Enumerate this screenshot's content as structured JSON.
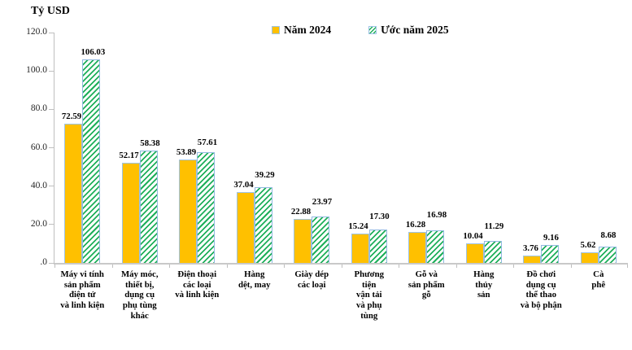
{
  "chart": {
    "y_axis_title": "Tỷ USD",
    "legend": [
      {
        "label": "Năm 2024",
        "swatch": "solid-orange-square"
      },
      {
        "label": "Ước năm 2025",
        "swatch": "green-hatched-square"
      }
    ],
    "colors": {
      "series_2024_fill": "#FFC000",
      "series_2025_hatch": "#1EAF5A",
      "bar_border": "#9DC3E6",
      "axis_line": "#BFBFBF",
      "text": "#000000"
    }
  },
  "chart_data": {
    "type": "bar",
    "title": "",
    "ylabel": "Tỷ USD",
    "xlabel": "",
    "ylim": [
      0,
      120
    ],
    "ytick_labels": [
      "120.0",
      "100.0",
      "80.0",
      "60.0",
      "40.0",
      "20.0",
      ".0"
    ],
    "ytick_values": [
      120,
      100,
      80,
      60,
      40,
      20,
      0
    ],
    "grid": false,
    "legend_position": "top",
    "categories": [
      "Máy vi tính sản phẩm điện tử và linh kiện",
      "Máy móc, thiết bị, dụng cụ phụ tùng khác",
      "Điện thoại các loại và linh kiện",
      "Hàng dệt, may",
      "Giày dép các loại",
      "Phương tiện vận tải và phụ tùng",
      "Gỗ và sản phẩm gỗ",
      "Hàng thủy sản",
      "Đồ chơi dụng cụ thể thao và bộ phận",
      "Cà phê"
    ],
    "category_label_lines": [
      "Máy vi tính\nsản phẩm\nđiện tử\nvà linh kiện",
      "Máy móc,\nthiết bị,\ndụng cụ\nphụ tùng\nkhác",
      "Điện thoại\ncác loại\nvà linh kiện",
      "Hàng\ndệt, may",
      "Giày dép\ncác loại",
      "Phương\ntiện\nvận tải\nvà phụ\ntùng",
      "Gỗ và\nsản phẩm\ngỗ",
      "Hàng\nthủy\nsản",
      "Đồ chơi\ndụng cụ\nthể thao\nvà bộ phận",
      "Cà\nphê"
    ],
    "series": [
      {
        "name": "Năm 2024",
        "values": [
          72.59,
          52.17,
          53.89,
          37.04,
          22.88,
          15.24,
          16.28,
          10.04,
          3.76,
          5.62
        ],
        "labels": [
          "72.59",
          "52.17",
          "53.89",
          "37.04",
          "22.88",
          "15.24",
          "16.28",
          "10.04",
          "3.76",
          "5.62"
        ]
      },
      {
        "name": "Ước năm 2025",
        "values": [
          106.03,
          58.38,
          57.61,
          39.29,
          23.97,
          17.3,
          16.98,
          11.29,
          9.16,
          8.68
        ],
        "labels": [
          "106.03",
          "58.38",
          "57.61",
          "39.29",
          "23.97",
          "17.30",
          "16.98",
          "11.29",
          "9.16",
          "8.68"
        ]
      }
    ]
  }
}
